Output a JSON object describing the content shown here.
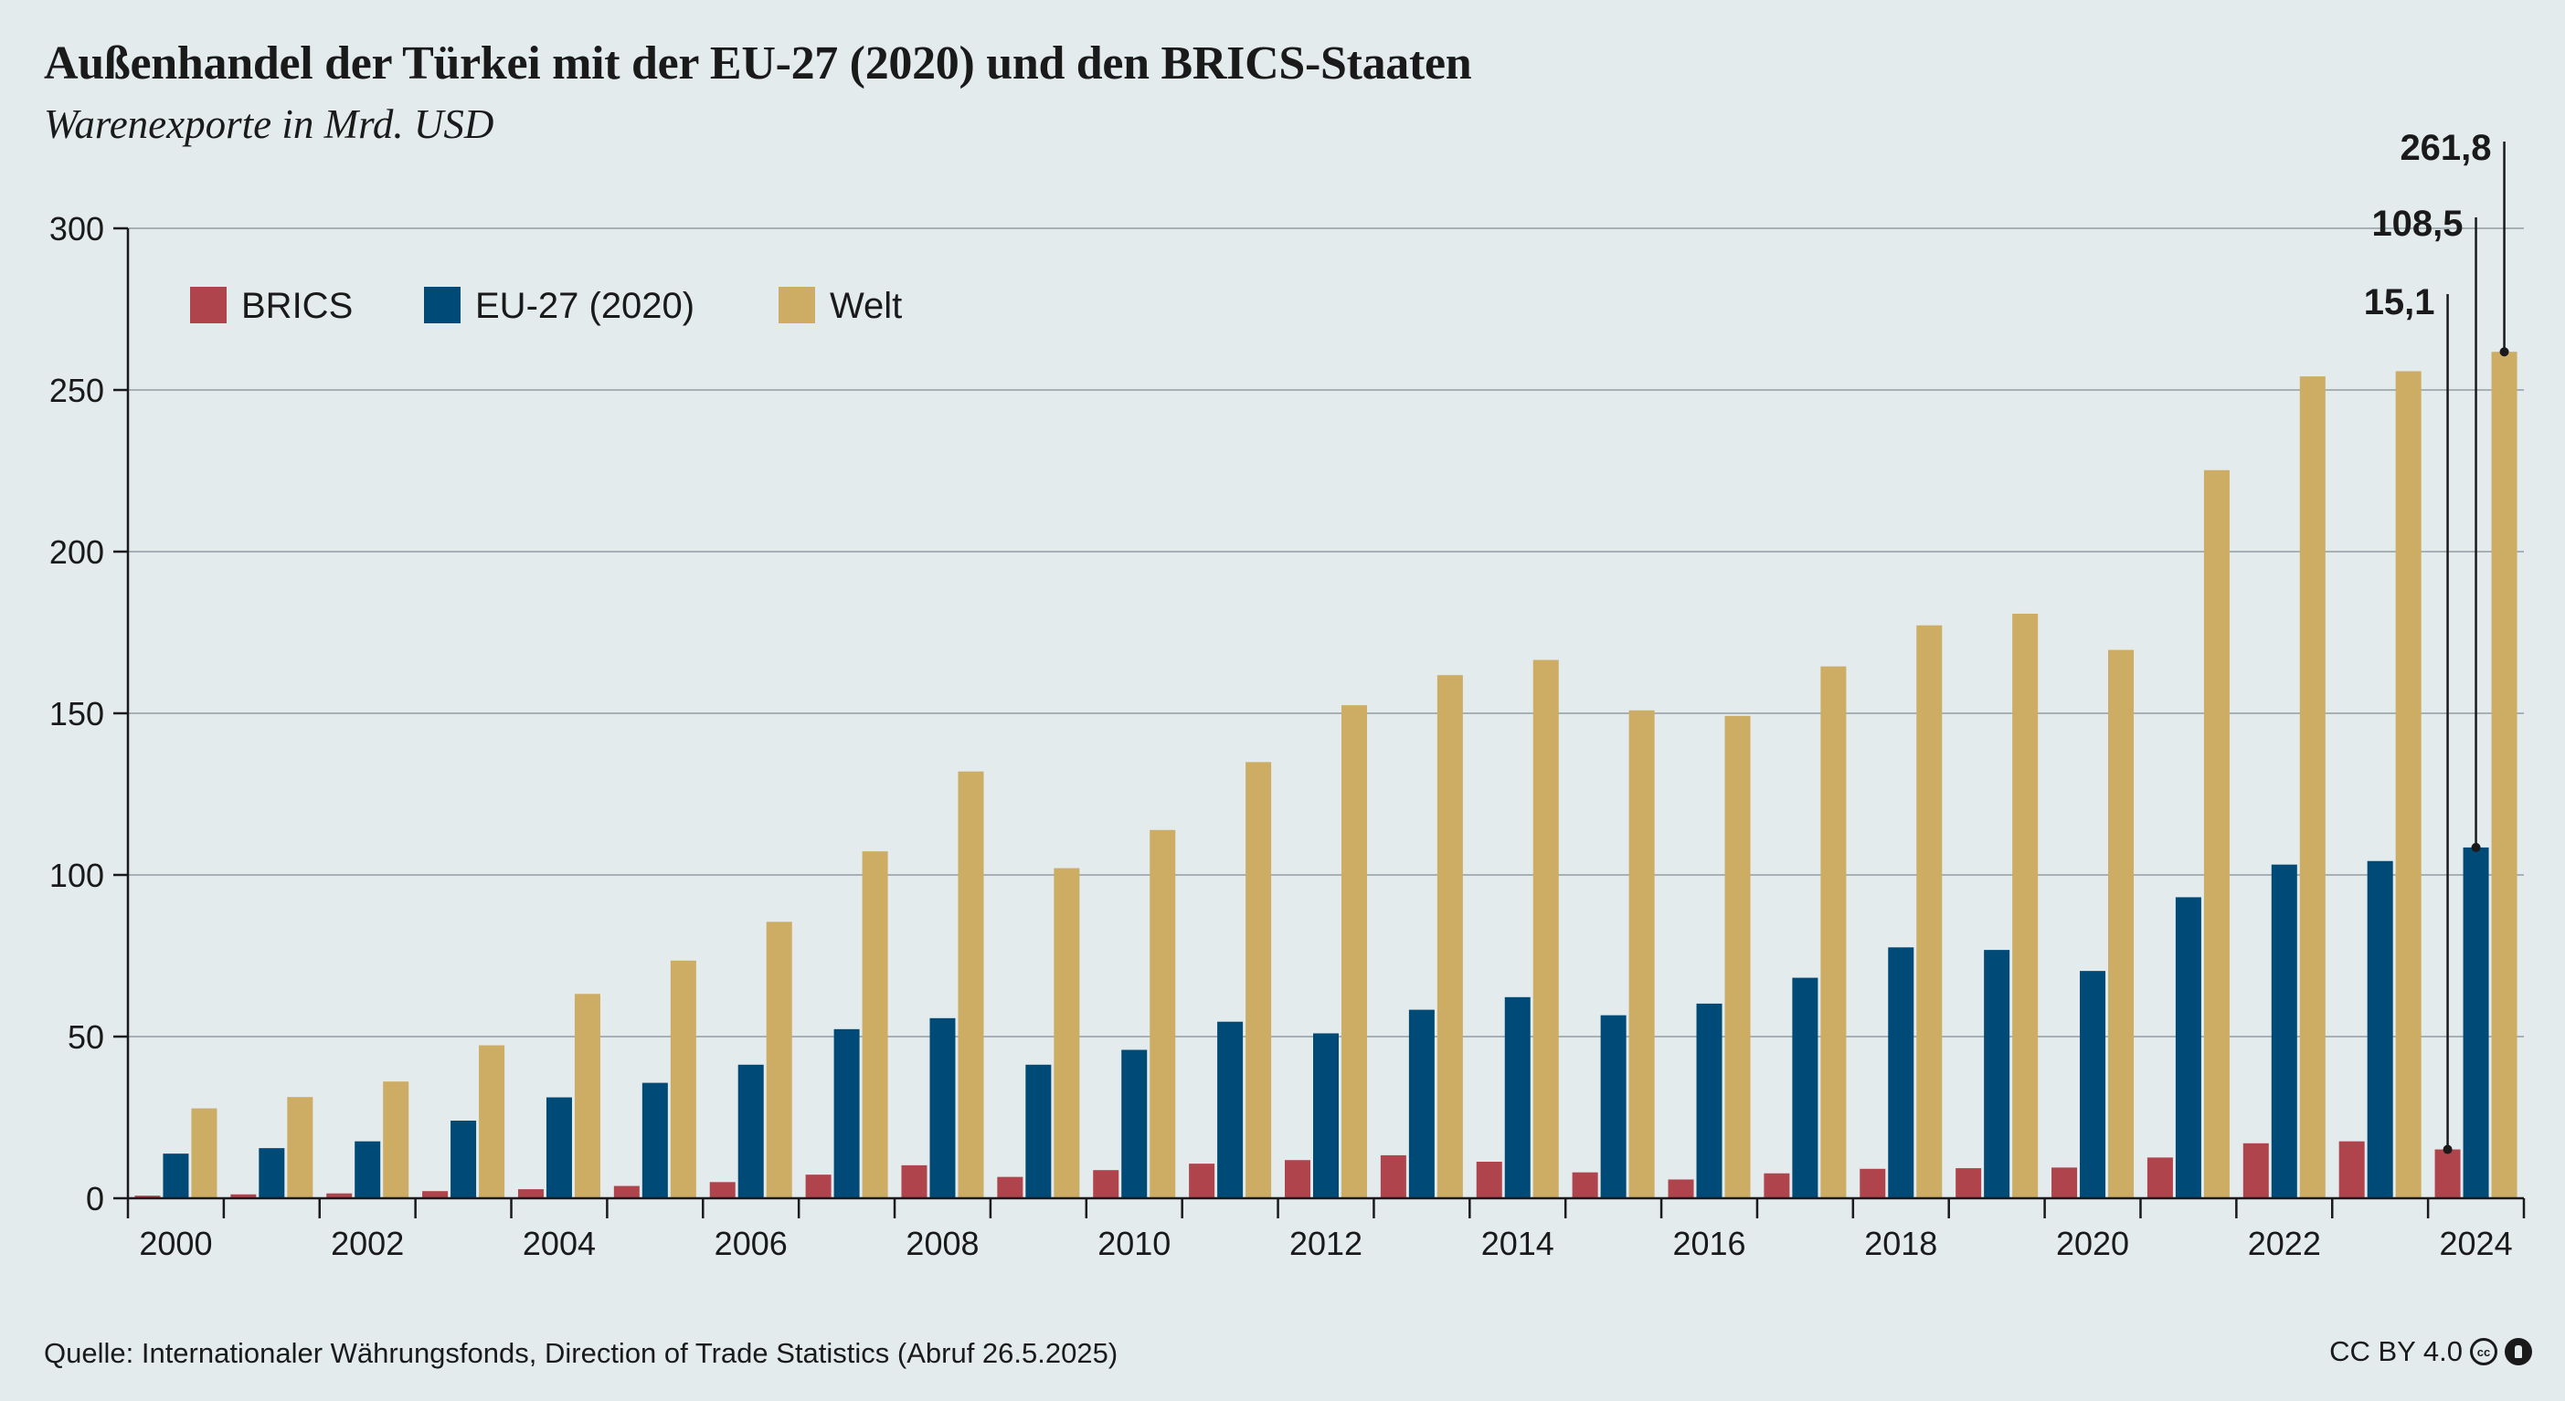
{
  "title": "Außenhandel der Türkei mit der EU-27 (2020) und den BRICS-Staaten",
  "subtitle": "Warenexporte in Mrd. USD",
  "source": "Quelle: Internationaler Währungsfonds, Direction of Trade Statistics (Abruf 26.5.2025)",
  "license": "CC BY 4.0",
  "chart_data": {
    "type": "bar",
    "title": "Außenhandel der Türkei mit der EU-27 (2020) und den BRICS-Staaten",
    "subtitle": "Warenexporte in Mrd. USD",
    "xlabel": "",
    "ylabel": "",
    "ylim": [
      0,
      300
    ],
    "yticks": [
      0,
      50,
      100,
      150,
      200,
      250,
      300
    ],
    "grid": true,
    "legend_position": "top-left",
    "categories": [
      "2000",
      "2001",
      "2002",
      "2003",
      "2004",
      "2005",
      "2006",
      "2007",
      "2008",
      "2009",
      "2010",
      "2011",
      "2012",
      "2013",
      "2014",
      "2015",
      "2016",
      "2017",
      "2018",
      "2019",
      "2020",
      "2021",
      "2022",
      "2023",
      "2024"
    ],
    "xtick_labels": [
      "2000",
      "2002",
      "2004",
      "2006",
      "2008",
      "2010",
      "2012",
      "2014",
      "2016",
      "2018",
      "2020",
      "2022",
      "2024"
    ],
    "series": [
      {
        "name": "BRICS",
        "color": "#b0444c",
        "values": [
          0.8,
          1.2,
          1.5,
          2.2,
          2.8,
          3.8,
          5.0,
          7.3,
          10.2,
          6.6,
          8.7,
          10.7,
          11.8,
          13.3,
          11.3,
          8.0,
          5.8,
          7.7,
          9.1,
          9.3,
          9.5,
          12.6,
          17.0,
          17.6,
          15.1
        ]
      },
      {
        "name": "EU-27 (2020)",
        "color": "#004a78",
        "values": [
          13.8,
          15.5,
          17.6,
          24.0,
          31.2,
          35.7,
          41.3,
          52.3,
          55.7,
          41.3,
          45.9,
          54.6,
          51.0,
          58.3,
          62.2,
          56.6,
          60.2,
          68.2,
          77.6,
          76.8,
          70.3,
          93.1,
          103.2,
          104.3,
          108.5
        ]
      },
      {
        "name": "Welt",
        "color": "#cdac64",
        "values": [
          27.8,
          31.3,
          36.1,
          47.3,
          63.2,
          73.5,
          85.5,
          107.3,
          132.0,
          102.1,
          113.9,
          134.9,
          152.5,
          161.8,
          166.5,
          150.9,
          149.2,
          164.5,
          177.2,
          180.8,
          169.6,
          225.2,
          254.2,
          255.8,
          261.8
        ]
      }
    ],
    "annotations": [
      {
        "text": "261,8",
        "series": "Welt",
        "category": "2024",
        "value": 261.8
      },
      {
        "text": "108,5",
        "series": "EU-27 (2020)",
        "category": "2024",
        "value": 108.5
      },
      {
        "text": "15,1",
        "series": "BRICS",
        "category": "2024",
        "value": 15.1
      }
    ]
  }
}
